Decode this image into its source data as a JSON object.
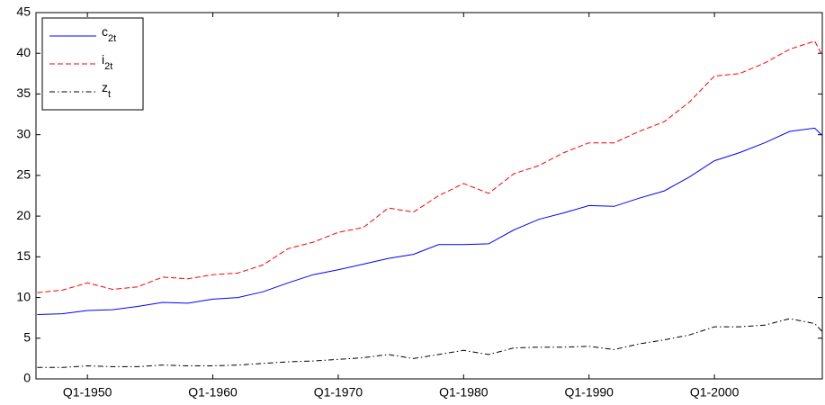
{
  "chart_data": {
    "type": "line",
    "x": [
      1946,
      1948,
      1950,
      1952,
      1954,
      1956,
      1958,
      1960,
      1962,
      1964,
      1966,
      1968,
      1970,
      1972,
      1974,
      1976,
      1978,
      1980,
      1982,
      1984,
      1986,
      1988,
      1990,
      1992,
      1994,
      1996,
      1998,
      2000,
      2002,
      2004,
      2006,
      2008,
      2008.6
    ],
    "series": [
      {
        "name": "c2t",
        "color": "#0000ff",
        "dash": "solid",
        "values": [
          7.9,
          8.0,
          8.4,
          8.5,
          8.9,
          9.4,
          9.3,
          9.8,
          10.0,
          10.7,
          11.8,
          12.8,
          13.4,
          14.1,
          14.8,
          15.3,
          16.5,
          16.5,
          16.6,
          18.3,
          19.6,
          20.4,
          21.3,
          21.2,
          22.2,
          23.1,
          24.8,
          26.8,
          27.8,
          29.0,
          30.4,
          30.8,
          29.9
        ]
      },
      {
        "name": "i2t",
        "color": "#ff0000",
        "dash": "dashed",
        "values": [
          10.6,
          10.9,
          11.8,
          11.0,
          11.3,
          12.5,
          12.3,
          12.8,
          13.0,
          14.0,
          16.0,
          16.8,
          18.0,
          18.6,
          21.0,
          20.5,
          22.5,
          24.0,
          22.8,
          25.2,
          26.2,
          27.8,
          29.0,
          29.0,
          30.4,
          31.6,
          34.0,
          37.2,
          37.5,
          38.8,
          40.5,
          41.5,
          39.7
        ]
      },
      {
        "name": "zt",
        "color": "#000000",
        "dash": "dashdot",
        "values": [
          1.4,
          1.4,
          1.6,
          1.5,
          1.5,
          1.7,
          1.6,
          1.6,
          1.7,
          1.9,
          2.1,
          2.2,
          2.4,
          2.6,
          3.0,
          2.5,
          3.0,
          3.5,
          3.0,
          3.8,
          3.9,
          3.9,
          4.0,
          3.6,
          4.3,
          4.8,
          5.4,
          6.4,
          6.4,
          6.6,
          7.4,
          6.8,
          5.8
        ]
      }
    ],
    "xlim": [
      1945.9,
      2008.6
    ],
    "xticks": [
      {
        "value": 1950,
        "label": "Q1-1950"
      },
      {
        "value": 1960,
        "label": "Q1-1960"
      },
      {
        "value": 1970,
        "label": "Q1-1970"
      },
      {
        "value": 1980,
        "label": "Q1-1980"
      },
      {
        "value": 1990,
        "label": "Q1-1990"
      },
      {
        "value": 2000,
        "label": "Q1-2000"
      }
    ],
    "ylim": [
      0,
      45
    ],
    "yticks": [
      0,
      5,
      10,
      15,
      20,
      25,
      30,
      35,
      40,
      45
    ],
    "grid": false,
    "legend": "upper-left"
  }
}
